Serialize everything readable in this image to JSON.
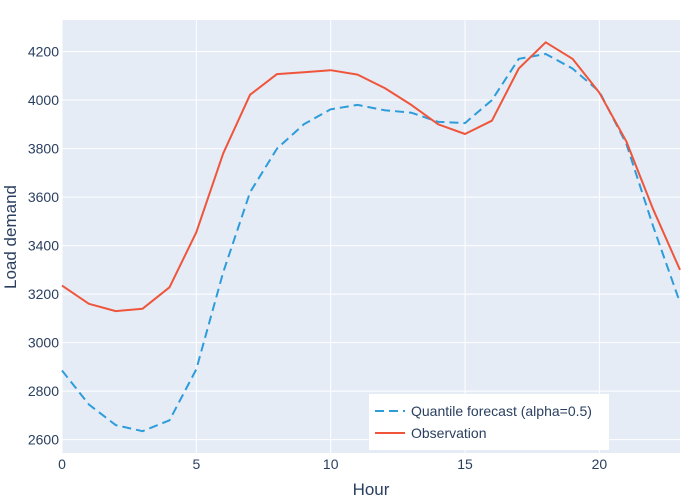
{
  "chart_data": {
    "type": "line",
    "title": "",
    "xlabel": "Hour",
    "ylabel": "Load demand",
    "xlim": [
      0,
      23
    ],
    "ylim": [
      2545,
      4330
    ],
    "x_ticks": [
      0,
      5,
      10,
      15,
      20
    ],
    "y_ticks": [
      2600,
      2800,
      3000,
      3200,
      3400,
      3600,
      3800,
      4000,
      4200
    ],
    "grid": true,
    "legend_position": "bottom-right",
    "x": [
      0,
      1,
      2,
      3,
      4,
      5,
      6,
      7,
      8,
      9,
      10,
      11,
      12,
      13,
      14,
      15,
      16,
      17,
      18,
      19,
      20,
      21,
      22,
      23
    ],
    "series": [
      {
        "name": "Quantile forecast (alpha=0.5)",
        "color": "#2d9cdb",
        "dash": "dashed",
        "values": [
          2885,
          2745,
          2660,
          2635,
          2680,
          2890,
          3290,
          3620,
          3800,
          3900,
          3962,
          3980,
          3958,
          3948,
          3910,
          3905,
          4000,
          4170,
          4190,
          4130,
          4035,
          3820,
          3480,
          3165
        ]
      },
      {
        "name": "Observation",
        "color": "#ef553b",
        "dash": "solid",
        "values": [
          3235,
          3160,
          3130,
          3140,
          3228,
          3455,
          3780,
          4022,
          4107,
          4115,
          4123,
          4105,
          4050,
          3980,
          3900,
          3860,
          3915,
          4130,
          4238,
          4170,
          4030,
          3830,
          3550,
          3300
        ]
      }
    ]
  }
}
